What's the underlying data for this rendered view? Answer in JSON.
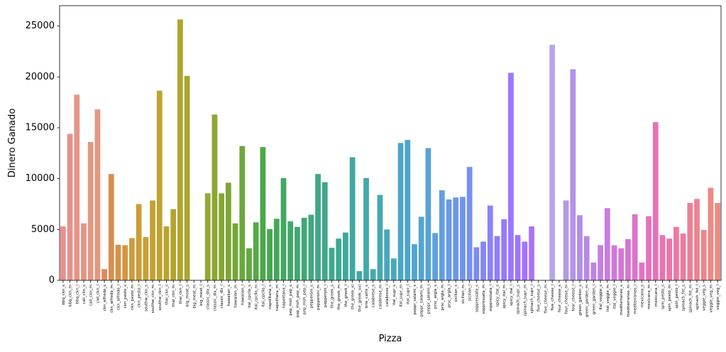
{
  "chart_data": {
    "type": "bar",
    "title": "",
    "xlabel": "Pizza",
    "ylabel": "Dinero Ganado",
    "ylim": [
      0,
      27000
    ],
    "yticks": [
      0,
      5000,
      10000,
      15000,
      20000,
      25000
    ],
    "grid": false,
    "legend": "none",
    "categories": [
      "bbq_ckn_s",
      "bbq_ckn_m",
      "bbq_ckn_l",
      "cali_ckn_s",
      "cali_ckn_m",
      "cali_ckn_l",
      "ckn_alfredo_s",
      "ckn_alfredo_m",
      "ckn_alfredo_l",
      "ckn_pesto_s",
      "ckn_pesto_m",
      "ckn_pesto_l",
      "southw_ckn_s",
      "southw_ckn_m",
      "southw_ckn_l",
      "thai_ckn_s",
      "thai_ckn_m",
      "thai_ckn_l",
      "big_meat_s",
      "big_meat_m",
      "big_meat_l",
      "classic_dlx_s",
      "classic_dlx_m",
      "classic_dlx_l",
      "hawaiian_s",
      "hawaiian_m",
      "hawaiian_l",
      "ital_cpcllo_s",
      "ital_cpcllo_m",
      "ital_cpcllo_l",
      "napolitana_s",
      "napolitana_m",
      "napolitana_l",
      "pep_msh_pep_s",
      "pep_msh_pep_m",
      "pep_msh_pep_l",
      "pepperoni_s",
      "pepperoni_m",
      "pepperoni_l",
      "the_greek_s",
      "the_greek_m",
      "the_greek_l",
      "the_greek_xl",
      "the_greek_xxl",
      "brie_carre_s",
      "calabrese_s",
      "calabrese_m",
      "calabrese_l",
      "ital_supr_s",
      "ital_supr_m",
      "ital_supr_l",
      "peppr_salami_s",
      "peppr_salami_m",
      "peppr_salami_l",
      "prsc_argla_s",
      "prsc_argla_m",
      "prsc_argla_l",
      "sicilian_s",
      "sicilian_m",
      "sicilian_l",
      "soppressata_s",
      "soppressata_m",
      "soppressata_l",
      "spicy_ital_s",
      "spicy_ital_m",
      "spicy_ital_l",
      "spinach_supr_s",
      "spinach_supr_m",
      "spinach_supr_l",
      "five_cheese_s",
      "five_cheese_m",
      "five_cheese_l",
      "four_cheese_s",
      "four_cheese_m",
      "four_cheese_l",
      "green_garden_s",
      "green_garden_m",
      "green_garden_l",
      "ital_veggie_s",
      "ital_veggie_m",
      "ital_veggie_l",
      "mediterraneo_s",
      "mediterraneo_m",
      "mediterraneo_l",
      "mexicana_s",
      "mexicana_m",
      "mexicana_l",
      "spin_pesto_s",
      "spin_pesto_m",
      "spin_pesto_l",
      "spinach_fet_s",
      "spinach_fet_m",
      "spinach_fet_l",
      "veggie_veg_s",
      "veggie_veg_m",
      "veggie_veg_l"
    ],
    "values": [
      5300,
      14400,
      18250,
      5600,
      13600,
      16800,
      1100,
      10450,
      3500,
      3450,
      4150,
      7500,
      4250,
      7850,
      18650,
      5300,
      7000,
      25650,
      20100,
      0,
      0,
      8550,
      16300,
      8550,
      9600,
      5600,
      13200,
      3150,
      5700,
      13100,
      5050,
      6050,
      10050,
      5800,
      5250,
      6150,
      6450,
      10450,
      9650,
      3200,
      4100,
      4700,
      12100,
      900,
      10050,
      1100,
      8400,
      5000,
      2150,
      13500,
      13800,
      3550,
      6250,
      13000,
      4650,
      8850,
      7950,
      8150,
      8200,
      11150,
      3250,
      3800,
      7350,
      4350,
      6000,
      20400,
      4450,
      3800,
      5300,
      0,
      0,
      23150,
      0,
      7850,
      20750,
      6400,
      4350,
      1750,
      3450,
      7100,
      3450,
      3150,
      4050,
      6500,
      1750,
      6300,
      15550,
      4450,
      4100,
      5250,
      4600,
      7600,
      8000,
      4950,
      9100,
      7600
    ],
    "colors": [
      "#e8908c",
      "#e7928a",
      "#e69488",
      "#e49585",
      "#e39783",
      "#e19980",
      "#dd8a56",
      "#d98e4f",
      "#d69248",
      "#d39642",
      "#cf9a3d",
      "#cb9d38",
      "#c7a034",
      "#c3a232",
      "#bea330",
      "#b9a52f",
      "#b3a52e",
      "#aea62e",
      "#a8a62f",
      "#a2a630",
      "#9ca631",
      "#95a633",
      "#8ea634",
      "#86a636",
      "#7ea638",
      "#75a73a",
      "#6ba83c",
      "#60a940",
      "#55a944",
      "#4aa94a",
      "#45a852",
      "#44a85a",
      "#43a862",
      "#42a86a",
      "#41a871",
      "#41a877",
      "#40a87e",
      "#40a884",
      "#40a88a",
      "#40a890",
      "#40a896",
      "#41a89c",
      "#41a8a1",
      "#42a8a6",
      "#43a8ab",
      "#44a8b0",
      "#45a8b5",
      "#47a8ba",
      "#49a8bf",
      "#4ba7c4",
      "#4ea6c9",
      "#52a5ce",
      "#55a4d3",
      "#59a2d8",
      "#5ea0dd",
      "#629ee2",
      "#679be6",
      "#6c98ea",
      "#7194ee",
      "#7790f2",
      "#7d8bf5",
      "#8386f8",
      "#8982fa",
      "#8f7efc",
      "#957afd",
      "#9a77fe",
      "#9f75fe",
      "#a473fd",
      "#a972fc",
      "#ad72fa",
      "#b172f8",
      "#b5a7e8",
      "#b4a0e6",
      "#b39ae6",
      "#b394e8",
      "#b28ee9",
      "#b889e7",
      "#bd84e4",
      "#c380e1",
      "#c97cde",
      "#cf79da",
      "#d476d6",
      "#d974d1",
      "#de72cb",
      "#e271c5",
      "#e571be",
      "#e872b7",
      "#ea74b0",
      "#ec76aa",
      "#ed78a3",
      "#ee7b9d",
      "#ee7e97",
      "#ee8291",
      "#ed868b",
      "#ec8a86",
      "#ea8d81"
    ]
  }
}
